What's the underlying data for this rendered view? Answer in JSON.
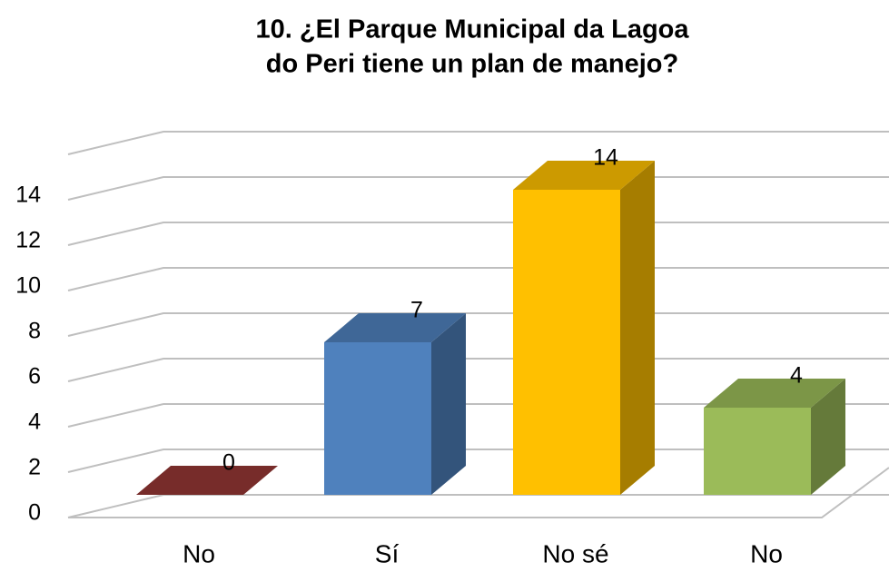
{
  "chart_data": {
    "type": "bar3d",
    "title": [
      "10. ¿El Parque Municipal da Lagoa",
      "do Peri tiene un plan de manejo?"
    ],
    "categories": [
      "No",
      "Sí",
      "No sé",
      "No"
    ],
    "values": [
      0,
      7,
      14,
      4
    ],
    "colors": [
      "#953735",
      "#4f81bd",
      "#ffc000",
      "#9bbb59"
    ],
    "ylim": [
      0,
      16
    ],
    "yticks": [
      0,
      2,
      4,
      6,
      8,
      10,
      12,
      14
    ],
    "grid": true
  }
}
